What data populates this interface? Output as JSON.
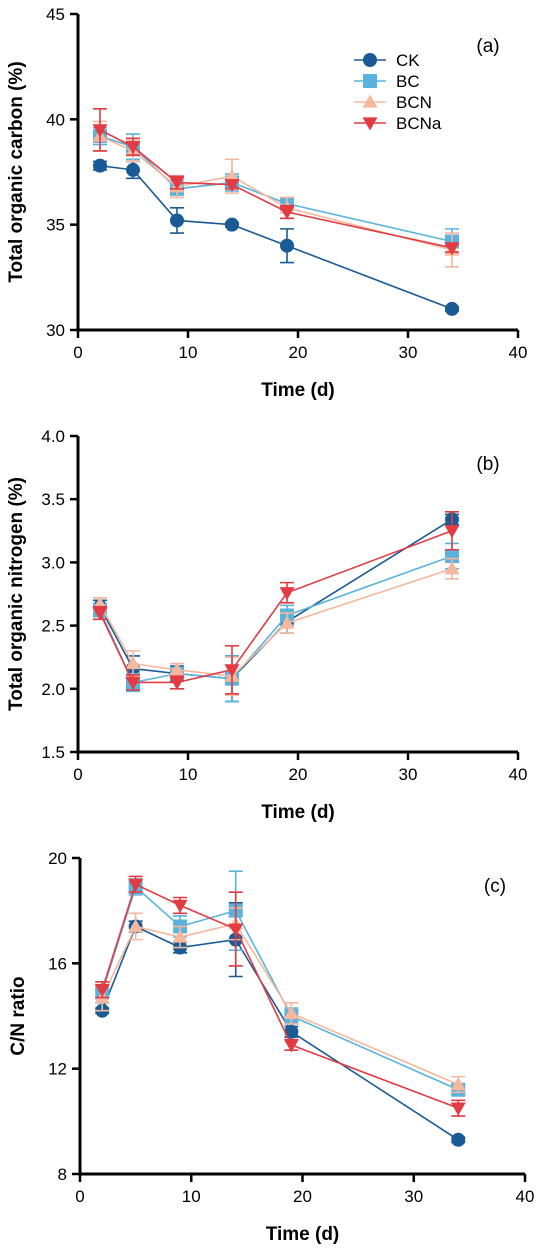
{
  "colors": {
    "CK": "#1a5b95",
    "BC": "#5ab3dc",
    "BCN": "#f5b79e",
    "BCNa": "#e23b44"
  },
  "markers": {
    "CK": "circle",
    "BC": "square",
    "BCN": "triangle-up",
    "BCNa": "triangle-down"
  },
  "chart_data": [
    {
      "type": "line",
      "panel_label": "(a)",
      "xlabel": "Time (d)",
      "ylabel": "Total organic carbon (%)",
      "xlim": [
        0,
        40
      ],
      "ylim": [
        30,
        45
      ],
      "xticks": [
        0,
        10,
        20,
        30,
        40
      ],
      "yticks": [
        30,
        35,
        40,
        45
      ],
      "legend": "top-right",
      "x": [
        2,
        5,
        9,
        14,
        19,
        34
      ],
      "series": [
        {
          "name": "CK",
          "values": [
            37.8,
            37.6,
            35.2,
            35.0,
            34.0,
            31.0
          ],
          "errors": [
            0.2,
            0.4,
            0.6,
            0.1,
            0.8,
            0.1
          ]
        },
        {
          "name": "BC",
          "values": [
            39.2,
            38.7,
            36.7,
            37.0,
            36.0,
            34.2
          ],
          "errors": [
            0.4,
            0.6,
            0.4,
            0.4,
            0.3,
            0.6
          ]
        },
        {
          "name": "BCN",
          "values": [
            39.2,
            38.5,
            36.8,
            37.3,
            35.8,
            33.8
          ],
          "errors": [
            0.7,
            0.5,
            0.5,
            0.8,
            0.5,
            0.8
          ]
        },
        {
          "name": "BCNa",
          "values": [
            39.5,
            38.7,
            37.0,
            36.9,
            35.6,
            33.9
          ],
          "errors": [
            1.0,
            0.4,
            0.3,
            0.2,
            0.3,
            0.2
          ]
        }
      ]
    },
    {
      "type": "line",
      "panel_label": "(b)",
      "xlabel": "Time (d)",
      "ylabel": "Total organic nitrogen (%)",
      "xlim": [
        0,
        40
      ],
      "ylim": [
        1.5,
        4.0
      ],
      "xticks": [
        0,
        10,
        20,
        30,
        40
      ],
      "yticks": [
        1.5,
        2.0,
        2.5,
        3.0,
        3.5,
        4.0
      ],
      "ytick_labels": [
        "1.5",
        "2.0",
        "2.5",
        "3.0",
        "3.5",
        "4.0"
      ],
      "x": [
        2,
        5,
        9,
        14,
        19,
        34
      ],
      "series": [
        {
          "name": "CK",
          "values": [
            2.65,
            2.16,
            2.12,
            2.08,
            2.53,
            3.34
          ],
          "errors": [
            0.05,
            0.1,
            0.06,
            0.18,
            0.09,
            0.04
          ]
        },
        {
          "name": "BC",
          "values": [
            2.62,
            2.05,
            2.12,
            2.08,
            2.58,
            3.05
          ],
          "errors": [
            0.05,
            0.07,
            0.05,
            0.18,
            0.08,
            0.1
          ]
        },
        {
          "name": "BCN",
          "values": [
            2.67,
            2.2,
            2.15,
            2.1,
            2.52,
            2.95
          ],
          "errors": [
            0.05,
            0.1,
            0.05,
            0.15,
            0.08,
            0.08
          ]
        },
        {
          "name": "BCNa",
          "values": [
            2.6,
            2.05,
            2.05,
            2.15,
            2.76,
            3.25
          ],
          "errors": [
            0.05,
            0.06,
            0.05,
            0.19,
            0.08,
            0.15
          ]
        }
      ]
    },
    {
      "type": "line",
      "panel_label": "(c)",
      "xlabel": "Time (d)",
      "ylabel": "C/N ratio",
      "xlim": [
        0,
        40
      ],
      "ylim": [
        8,
        20
      ],
      "xticks": [
        0,
        10,
        20,
        30,
        40
      ],
      "yticks": [
        8,
        12,
        16,
        20
      ],
      "x": [
        2,
        5,
        9,
        14,
        19,
        34
      ],
      "series": [
        {
          "name": "CK",
          "values": [
            14.2,
            17.4,
            16.6,
            16.9,
            13.4,
            9.3
          ],
          "errors": [
            0.1,
            0.2,
            0.2,
            1.4,
            0.2,
            0.1
          ]
        },
        {
          "name": "BC",
          "values": [
            14.9,
            18.9,
            17.4,
            18.0,
            14.0,
            11.2
          ],
          "errors": [
            0.4,
            0.3,
            0.4,
            1.5,
            0.3,
            0.2
          ]
        },
        {
          "name": "BCN",
          "values": [
            14.7,
            17.4,
            17.0,
            17.5,
            14.1,
            11.4
          ],
          "errors": [
            0.5,
            0.5,
            0.4,
            0.6,
            0.4,
            0.3
          ]
        },
        {
          "name": "BCNa",
          "values": [
            15.0,
            19.0,
            18.2,
            17.3,
            12.9,
            10.5
          ],
          "errors": [
            0.3,
            0.3,
            0.3,
            1.4,
            0.2,
            0.3
          ]
        }
      ]
    }
  ]
}
